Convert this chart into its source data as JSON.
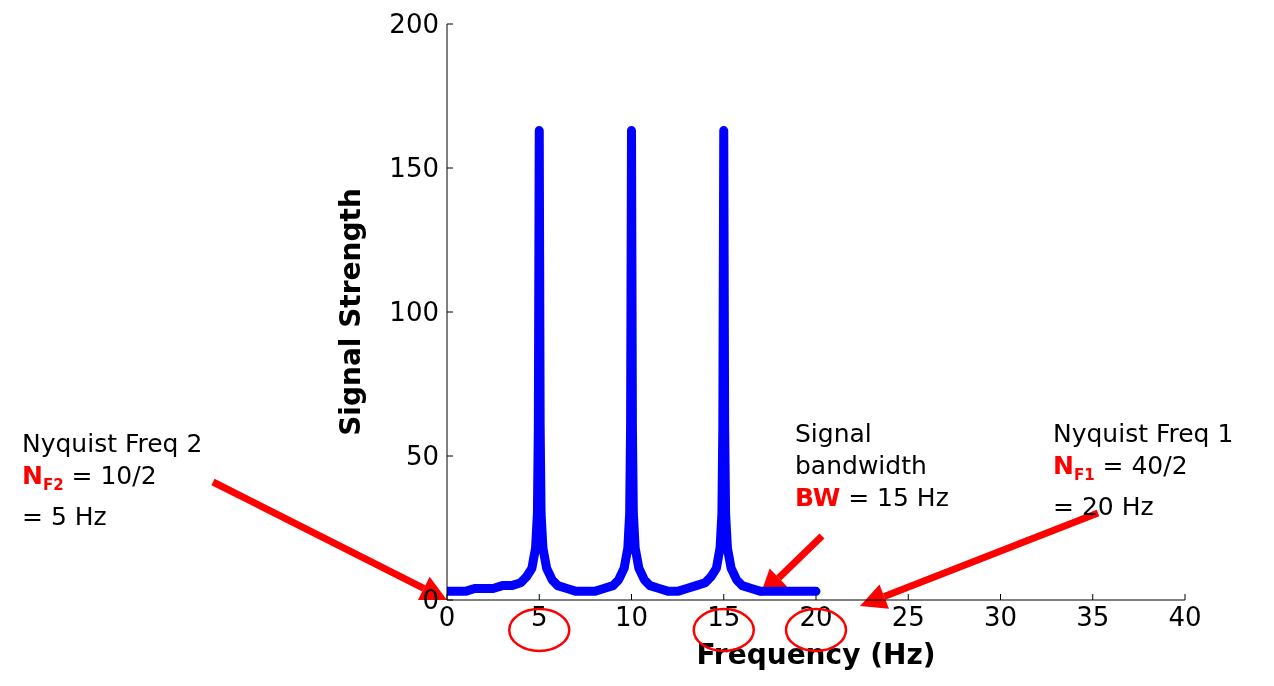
{
  "chart_data": {
    "type": "line",
    "xlabel": "Frequency (Hz)",
    "ylabel": "Signal Strength",
    "xlim": [
      0,
      40
    ],
    "xticks": [
      0,
      5,
      10,
      15,
      20,
      25,
      30,
      35,
      40
    ],
    "ylim": [
      0,
      200
    ],
    "yticks": [
      0,
      50,
      100,
      150,
      200
    ],
    "grid": false,
    "legend": false,
    "marker": "none",
    "line_style": "solid",
    "series": [
      {
        "color": "#0000ff",
        "x": [
          0,
          0.5,
          1,
          1.5,
          2,
          2.5,
          3,
          3.5,
          4,
          4.3,
          4.6,
          4.8,
          4.9,
          4.95,
          5,
          5.05,
          5.1,
          5.2,
          5.4,
          5.7,
          6,
          6.5,
          7,
          7.5,
          8,
          8.5,
          9,
          9.3,
          9.6,
          9.8,
          9.9,
          9.95,
          10,
          10.05,
          10.1,
          10.2,
          10.4,
          10.7,
          11,
          11.5,
          12,
          12.5,
          13,
          13.5,
          14,
          14.3,
          14.6,
          14.8,
          14.9,
          14.95,
          15,
          15.05,
          15.1,
          15.2,
          15.4,
          15.7,
          16,
          16.5,
          17,
          17.5,
          18,
          18.5,
          19,
          19.5,
          20
        ],
        "values": [
          3,
          3,
          3,
          4,
          4,
          4,
          5,
          5,
          6,
          8,
          11,
          18,
          30,
          60,
          163,
          60,
          30,
          18,
          11,
          7,
          5,
          4,
          3,
          3,
          3,
          4,
          5,
          7,
          11,
          18,
          30,
          60,
          163,
          60,
          30,
          18,
          11,
          7,
          5,
          4,
          3,
          3,
          4,
          5,
          6,
          8,
          11,
          18,
          30,
          60,
          163,
          60,
          30,
          18,
          11,
          7,
          5,
          4,
          3,
          3,
          3,
          3,
          3,
          3,
          3
        ]
      }
    ],
    "annotations": [
      "Nyquist Freq 2\nN$_{F2}$ = 10/2\n= 5 Hz",
      "Signal\nbandwidth\nBW = 15 Hz",
      "Nyquist Freq 1\nN$_{F1}$ = 40/2\n= 20 Hz"
    ]
  }
}
